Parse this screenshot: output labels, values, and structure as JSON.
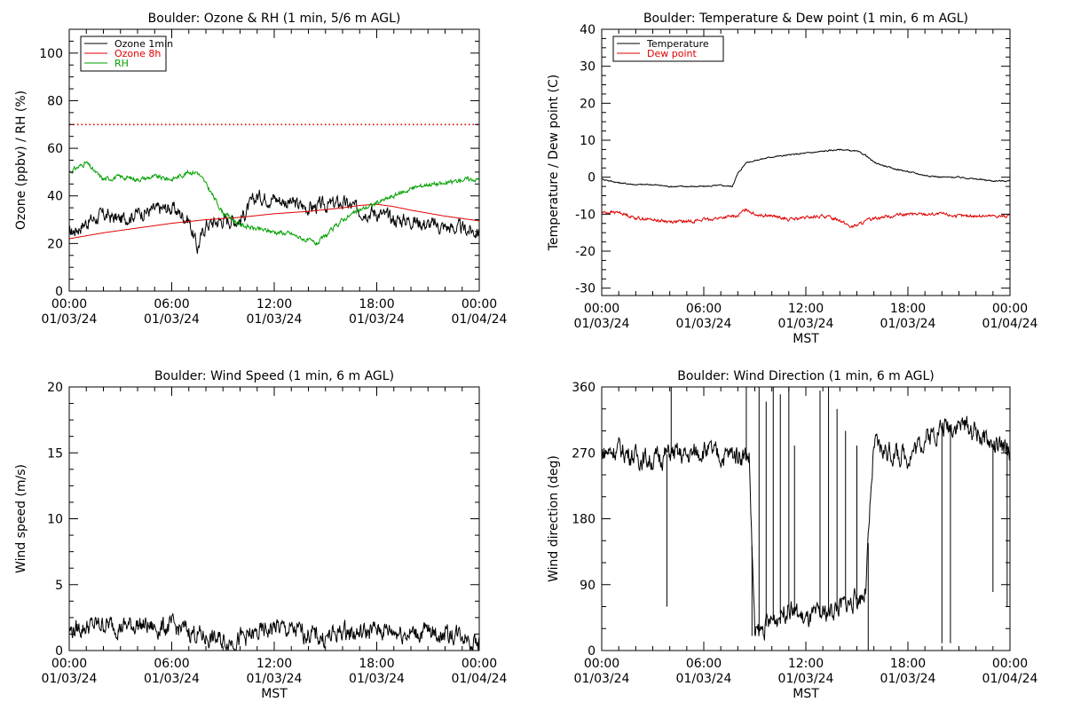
{
  "chart_data": [
    {
      "type": "line",
      "title": "Boulder: Ozone & RH (1 min, 5/6 m AGL)",
      "xlabel": "",
      "ylabel": "Ozone (ppbv) / RH (%)",
      "xlim": [
        "2024-01-03 00:00",
        "2024-01-04 00:00"
      ],
      "ylim": [
        0,
        110
      ],
      "x_ticks": [
        {
          "time": "00:00",
          "date": "01/03/24"
        },
        {
          "time": "06:00",
          "date": "01/03/24"
        },
        {
          "time": "12:00",
          "date": "01/03/24"
        },
        {
          "time": "18:00",
          "date": "01/03/24"
        },
        {
          "time": "00:00",
          "date": "01/04/24"
        }
      ],
      "y_ticks": [
        0,
        20,
        40,
        60,
        80,
        100
      ],
      "legend_position": "top-left",
      "grid": false,
      "reference_lines": [
        {
          "y": 70,
          "style": "dotted",
          "color": "#e00000"
        }
      ],
      "series": [
        {
          "name": "Ozone 1min",
          "color": "#000000",
          "noise": 2.5,
          "x": [
            "2024-01-03 00:00",
            "2024-01-03 01:00",
            "2024-01-03 02:00",
            "2024-01-03 03:00",
            "2024-01-03 04:00",
            "2024-01-03 05:00",
            "2024-01-03 06:00",
            "2024-01-03 07:00",
            "2024-01-03 07:30",
            "2024-01-03 08:00",
            "2024-01-03 09:00",
            "2024-01-03 10:00",
            "2024-01-03 11:00",
            "2024-01-03 12:00",
            "2024-01-03 13:00",
            "2024-01-03 14:00",
            "2024-01-03 15:00",
            "2024-01-03 16:00",
            "2024-01-03 17:00",
            "2024-01-03 18:00",
            "2024-01-03 19:00",
            "2024-01-03 20:00",
            "2024-01-03 21:00",
            "2024-01-03 22:00",
            "2024-01-03 23:00",
            "2024-01-04 00:00"
          ],
          "y": [
            24,
            29,
            32,
            30,
            33,
            34,
            35,
            30,
            18,
            28,
            30,
            30,
            40,
            39,
            37,
            35,
            36,
            37,
            34,
            33,
            30,
            30,
            28,
            27,
            26,
            25
          ]
        },
        {
          "name": "Ozone 8h",
          "color": "#e00000",
          "noise": 0,
          "x": [
            "2024-01-03 00:00",
            "2024-01-03 02:00",
            "2024-01-03 04:00",
            "2024-01-03 06:00",
            "2024-01-03 08:00",
            "2024-01-03 10:00",
            "2024-01-03 12:00",
            "2024-01-03 14:00",
            "2024-01-03 16:00",
            "2024-01-03 17:00",
            "2024-01-03 18:00",
            "2024-01-03 19:00",
            "2024-01-03 20:00",
            "2024-01-03 22:00",
            "2024-01-04 00:00"
          ],
          "y": [
            22,
            24.5,
            26.5,
            28.5,
            30,
            31,
            32.5,
            33.5,
            35,
            36,
            36.5,
            35.5,
            34,
            31.5,
            29.5
          ]
        },
        {
          "name": "RH",
          "color": "#00a000",
          "noise": 0.8,
          "x": [
            "2024-01-03 00:00",
            "2024-01-03 01:00",
            "2024-01-03 01:30",
            "2024-01-03 02:00",
            "2024-01-03 03:00",
            "2024-01-03 04:00",
            "2024-01-03 05:00",
            "2024-01-03 06:00",
            "2024-01-03 07:00",
            "2024-01-03 07:30",
            "2024-01-03 08:00",
            "2024-01-03 09:00",
            "2024-01-03 10:00",
            "2024-01-03 11:00",
            "2024-01-03 12:00",
            "2024-01-03 13:00",
            "2024-01-03 14:00",
            "2024-01-03 14:30",
            "2024-01-03 15:00",
            "2024-01-03 16:00",
            "2024-01-03 17:00",
            "2024-01-03 18:00",
            "2024-01-03 19:00",
            "2024-01-03 20:00",
            "2024-01-03 21:00",
            "2024-01-03 22:00",
            "2024-01-03 23:00",
            "2024-01-04 00:00"
          ],
          "y": [
            50,
            54,
            50,
            47,
            48,
            47,
            48,
            47,
            50,
            50,
            45,
            33,
            28,
            26,
            25,
            24,
            21,
            20,
            23,
            30,
            34,
            37,
            40,
            43,
            45,
            45,
            47,
            47
          ]
        }
      ]
    },
    {
      "type": "line",
      "title": "Boulder: Temperature & Dew point (1 min, 6 m AGL)",
      "xlabel": "MST",
      "ylabel": "Temperature / Dew point (C)",
      "xlim": [
        "2024-01-03 00:00",
        "2024-01-04 00:00"
      ],
      "ylim": [
        -32,
        40
      ],
      "x_ticks": [
        {
          "time": "00:00",
          "date": "01/03/24"
        },
        {
          "time": "06:00",
          "date": "01/03/24"
        },
        {
          "time": "12:00",
          "date": "01/03/24"
        },
        {
          "time": "18:00",
          "date": "01/03/24"
        },
        {
          "time": "00:00",
          "date": "01/04/24"
        }
      ],
      "y_ticks": [
        -30,
        -20,
        -10,
        0,
        10,
        20,
        30,
        40
      ],
      "legend_position": "top-left",
      "grid": false,
      "series": [
        {
          "name": "Temperature",
          "color": "#000000",
          "noise": 0.15,
          "x": [
            "2024-01-03 00:00",
            "2024-01-03 01:00",
            "2024-01-03 02:00",
            "2024-01-03 03:00",
            "2024-01-03 04:00",
            "2024-01-03 05:00",
            "2024-01-03 06:00",
            "2024-01-03 07:00",
            "2024-01-03 07:40",
            "2024-01-03 08:00",
            "2024-01-03 08:30",
            "2024-01-03 09:00",
            "2024-01-03 10:00",
            "2024-01-03 11:00",
            "2024-01-03 12:00",
            "2024-01-03 13:00",
            "2024-01-03 14:00",
            "2024-01-03 15:00",
            "2024-01-03 15:30",
            "2024-01-03 16:00",
            "2024-01-03 17:00",
            "2024-01-03 18:00",
            "2024-01-03 19:00",
            "2024-01-03 20:00",
            "2024-01-03 21:00",
            "2024-01-03 22:00",
            "2024-01-03 23:00",
            "2024-01-04 00:00"
          ],
          "y": [
            -0.5,
            -1.5,
            -2,
            -2,
            -2.5,
            -2.5,
            -2.5,
            -2.2,
            -2.5,
            1,
            4,
            4.5,
            5.5,
            6,
            6.5,
            7,
            7.5,
            7,
            6,
            4,
            2.5,
            1.5,
            0.5,
            0,
            0,
            -0.5,
            -1,
            -1
          ]
        },
        {
          "name": "Dew point",
          "color": "#e00000",
          "noise": 0.35,
          "x": [
            "2024-01-03 00:00",
            "2024-01-03 01:00",
            "2024-01-03 02:00",
            "2024-01-03 03:00",
            "2024-01-03 04:00",
            "2024-01-03 05:00",
            "2024-01-03 06:00",
            "2024-01-03 07:00",
            "2024-01-03 08:00",
            "2024-01-03 08:30",
            "2024-01-03 09:00",
            "2024-01-03 10:00",
            "2024-01-03 11:00",
            "2024-01-03 12:00",
            "2024-01-03 13:00",
            "2024-01-03 14:00",
            "2024-01-03 14:40",
            "2024-01-03 15:00",
            "2024-01-03 16:00",
            "2024-01-03 17:00",
            "2024-01-03 18:00",
            "2024-01-03 19:00",
            "2024-01-03 20:00",
            "2024-01-03 21:00",
            "2024-01-03 22:00",
            "2024-01-03 23:00",
            "2024-01-04 00:00"
          ],
          "y": [
            -9.5,
            -9.5,
            -11,
            -11.5,
            -12,
            -12,
            -11.5,
            -11,
            -10.5,
            -8.5,
            -10,
            -10.5,
            -11.5,
            -11,
            -10.5,
            -11.5,
            -13.5,
            -13,
            -11,
            -10.5,
            -10,
            -10,
            -10,
            -10.5,
            -10.5,
            -10.5,
            -10.5
          ]
        }
      ]
    },
    {
      "type": "line",
      "title": "Boulder: Wind Speed (1 min, 6 m AGL)",
      "xlabel": "MST",
      "ylabel": "Wind speed (m/s)",
      "xlim": [
        "2024-01-03 00:00",
        "2024-01-04 00:00"
      ],
      "ylim": [
        0,
        20
      ],
      "x_ticks": [
        {
          "time": "00:00",
          "date": "01/03/24"
        },
        {
          "time": "06:00",
          "date": "01/03/24"
        },
        {
          "time": "12:00",
          "date": "01/03/24"
        },
        {
          "time": "18:00",
          "date": "01/03/24"
        },
        {
          "time": "00:00",
          "date": "01/04/24"
        }
      ],
      "y_ticks": [
        0,
        5,
        10,
        15,
        20
      ],
      "grid": false,
      "series": [
        {
          "color": "#000000",
          "noise": 0.6,
          "floor": 0,
          "x": [
            "2024-01-03 00:00",
            "2024-01-03 01:00",
            "2024-01-03 02:00",
            "2024-01-03 03:00",
            "2024-01-03 04:00",
            "2024-01-03 05:00",
            "2024-01-03 06:00",
            "2024-01-03 07:00",
            "2024-01-03 08:00",
            "2024-01-03 09:00",
            "2024-01-03 10:00",
            "2024-01-03 11:00",
            "2024-01-03 12:00",
            "2024-01-03 13:00",
            "2024-01-03 14:00",
            "2024-01-03 15:00",
            "2024-01-03 16:00",
            "2024-01-03 17:00",
            "2024-01-03 18:00",
            "2024-01-03 19:00",
            "2024-01-03 20:00",
            "2024-01-03 21:00",
            "2024-01-03 22:00",
            "2024-01-03 23:00",
            "2024-01-04 00:00"
          ],
          "y": [
            1.5,
            1.8,
            2.0,
            1.8,
            2.0,
            1.7,
            1.8,
            1.5,
            1.0,
            0.7,
            0.9,
            1.2,
            1.8,
            1.5,
            1.3,
            0.9,
            1.5,
            1.3,
            1.6,
            1.5,
            1.3,
            1.4,
            1.2,
            1.3,
            0.5
          ]
        }
      ]
    },
    {
      "type": "line",
      "title": "Boulder: Wind Direction (1 min, 6 m AGL)",
      "xlabel": "MST",
      "ylabel": "Wind direction (deg)",
      "xlim": [
        "2024-01-03 00:00",
        "2024-01-04 00:00"
      ],
      "ylim": [
        0,
        360
      ],
      "x_ticks": [
        {
          "time": "00:00",
          "date": "01/03/24"
        },
        {
          "time": "06:00",
          "date": "01/03/24"
        },
        {
          "time": "12:00",
          "date": "01/03/24"
        },
        {
          "time": "18:00",
          "date": "01/03/24"
        },
        {
          "time": "00:00",
          "date": "01/04/24"
        }
      ],
      "y_ticks": [
        0,
        90,
        180,
        270,
        360
      ],
      "grid": false,
      "series": [
        {
          "color": "#000000",
          "noise": 12,
          "floor": 0,
          "ceiling": 360,
          "x": [
            "2024-01-03 00:00",
            "2024-01-03 01:00",
            "2024-01-03 02:00",
            "2024-01-03 03:00",
            "2024-01-03 04:00",
            "2024-01-03 05:00",
            "2024-01-03 06:00",
            "2024-01-03 07:00",
            "2024-01-03 08:00",
            "2024-01-03 08:40",
            "2024-01-03 09:00",
            "2024-01-03 10:00",
            "2024-01-03 11:00",
            "2024-01-03 12:00",
            "2024-01-03 13:00",
            "2024-01-03 14:00",
            "2024-01-03 15:00",
            "2024-01-03 15:30",
            "2024-01-03 16:00",
            "2024-01-03 17:00",
            "2024-01-03 18:00",
            "2024-01-03 19:00",
            "2024-01-03 20:00",
            "2024-01-03 21:00",
            "2024-01-03 22:00",
            "2024-01-03 23:00",
            "2024-01-04 00:00"
          ],
          "y": [
            270,
            275,
            265,
            260,
            270,
            265,
            275,
            265,
            270,
            265,
            20,
            40,
            60,
            40,
            50,
            60,
            70,
            80,
            280,
            270,
            265,
            290,
            305,
            310,
            300,
            280,
            270
          ]
        }
      ],
      "spikes": [
        {
          "x": "2024-01-03 03:50",
          "y": 60
        },
        {
          "x": "2024-01-03 04:05",
          "y": 360
        },
        {
          "x": "2024-01-03 08:30",
          "y": 360
        },
        {
          "x": "2024-01-03 08:50",
          "y": 20
        },
        {
          "x": "2024-01-03 09:15",
          "y": 360
        },
        {
          "x": "2024-01-03 09:40",
          "y": 340
        },
        {
          "x": "2024-01-03 10:05",
          "y": 360
        },
        {
          "x": "2024-01-03 10:30",
          "y": 350
        },
        {
          "x": "2024-01-03 11:00",
          "y": 360
        },
        {
          "x": "2024-01-03 11:20",
          "y": 280
        },
        {
          "x": "2024-01-03 12:50",
          "y": 355
        },
        {
          "x": "2024-01-03 13:20",
          "y": 360
        },
        {
          "x": "2024-01-03 13:50",
          "y": 330
        },
        {
          "x": "2024-01-03 14:20",
          "y": 300
        },
        {
          "x": "2024-01-03 15:00",
          "y": 280
        },
        {
          "x": "2024-01-03 15:40",
          "y": 0
        },
        {
          "x": "2024-01-03 20:00",
          "y": 10
        },
        {
          "x": "2024-01-03 20:30",
          "y": 10
        },
        {
          "x": "2024-01-03 23:00",
          "y": 80
        },
        {
          "x": "2024-01-03 23:50",
          "y": 60
        }
      ]
    }
  ]
}
